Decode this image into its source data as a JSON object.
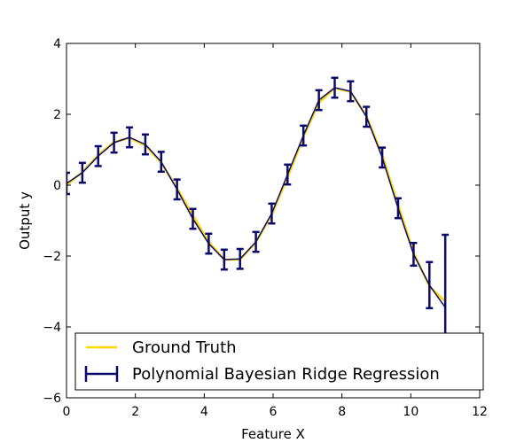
{
  "chart_data": {
    "type": "line",
    "title": "",
    "xlabel": "Feature X",
    "ylabel": "Output y",
    "xlim": [
      0,
      12
    ],
    "ylim": [
      -6,
      4
    ],
    "xticks": [
      0,
      2,
      4,
      6,
      8,
      10,
      12
    ],
    "yticks": [
      -6,
      -4,
      -2,
      0,
      2,
      4
    ],
    "grid": false,
    "legend_position": "lower-left",
    "series": [
      {
        "name": "Ground Truth",
        "kind": "line",
        "color": "#FFD700",
        "x": [
          0,
          0.46,
          0.92,
          1.38,
          1.83,
          2.29,
          2.75,
          3.21,
          3.67,
          4.13,
          4.58,
          5.04,
          5.5,
          5.96,
          6.42,
          6.88,
          7.33,
          7.79,
          8.25,
          8.71,
          9.17,
          9.63,
          10.08,
          10.54,
          11.0
        ],
        "values": [
          0.0,
          0.37,
          0.85,
          1.22,
          1.33,
          1.12,
          0.63,
          -0.08,
          -0.85,
          -1.6,
          -2.1,
          -2.1,
          -1.62,
          -0.84,
          0.22,
          1.36,
          2.32,
          2.74,
          2.63,
          1.96,
          0.85,
          -0.55,
          -1.9,
          -2.86,
          -3.28
        ]
      },
      {
        "name": "Polynomial Bayesian Ridge Regression",
        "kind": "errorbar",
        "color": "#0b0b6b",
        "x": [
          0,
          0.46,
          0.92,
          1.38,
          1.83,
          2.29,
          2.75,
          3.21,
          3.67,
          4.13,
          4.58,
          5.04,
          5.5,
          5.96,
          6.42,
          6.88,
          7.33,
          7.79,
          8.25,
          8.71,
          9.17,
          9.63,
          10.08,
          10.54,
          11.0
        ],
        "values": [
          0.05,
          0.35,
          0.82,
          1.2,
          1.35,
          1.15,
          0.66,
          -0.12,
          -0.95,
          -1.65,
          -2.1,
          -2.08,
          -1.6,
          -0.8,
          0.3,
          1.4,
          2.4,
          2.75,
          2.65,
          1.93,
          0.78,
          -0.65,
          -1.95,
          -2.82,
          -3.45
        ],
        "errors": [
          0.3,
          0.28,
          0.28,
          0.28,
          0.28,
          0.28,
          0.28,
          0.28,
          0.28,
          0.28,
          0.28,
          0.28,
          0.28,
          0.28,
          0.28,
          0.28,
          0.28,
          0.28,
          0.28,
          0.28,
          0.28,
          0.28,
          0.32,
          0.65,
          2.05
        ]
      }
    ]
  }
}
